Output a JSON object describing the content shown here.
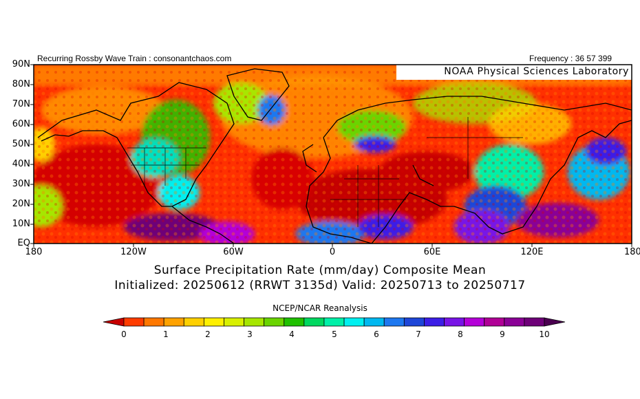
{
  "header": {
    "left_text": "Recurring Rossby Wave Train : consonantchaos.com",
    "right_text": "Frequency : 36 57 399"
  },
  "map": {
    "source_label": "NOAA Physical Sciences Laboratory",
    "lat_labels": [
      "90N",
      "80N",
      "70N",
      "60N",
      "50N",
      "40N",
      "30N",
      "20N",
      "10N",
      "EQ"
    ],
    "lon_labels": [
      "180",
      "120W",
      "60W",
      "0",
      "60E",
      "120E",
      "180"
    ]
  },
  "titles": {
    "line1": "Surface Precipitation Rate (mm/day) Composite Mean",
    "line2": "Initialized: 20250612 (RRWT 3135d) Valid: 20250713 to 20250717",
    "reanalysis": "NCEP/NCAR Reanalysis"
  },
  "colorbar": {
    "labels": [
      "0",
      "1",
      "2",
      "3",
      "4",
      "5",
      "6",
      "7",
      "8",
      "9",
      "10"
    ],
    "colors": [
      "#e00000",
      "#ff3c00",
      "#ff7800",
      "#ffa200",
      "#ffd000",
      "#fff000",
      "#d8f000",
      "#a6e600",
      "#6ad400",
      "#20c000",
      "#00d860",
      "#00f0a8",
      "#00f0f0",
      "#00b8f0",
      "#1e78f0",
      "#1e46d8",
      "#3c1ee6",
      "#7814e6",
      "#b400d8",
      "#b00096",
      "#8a0096",
      "#6e0078",
      "#4a0050"
    ]
  }
}
